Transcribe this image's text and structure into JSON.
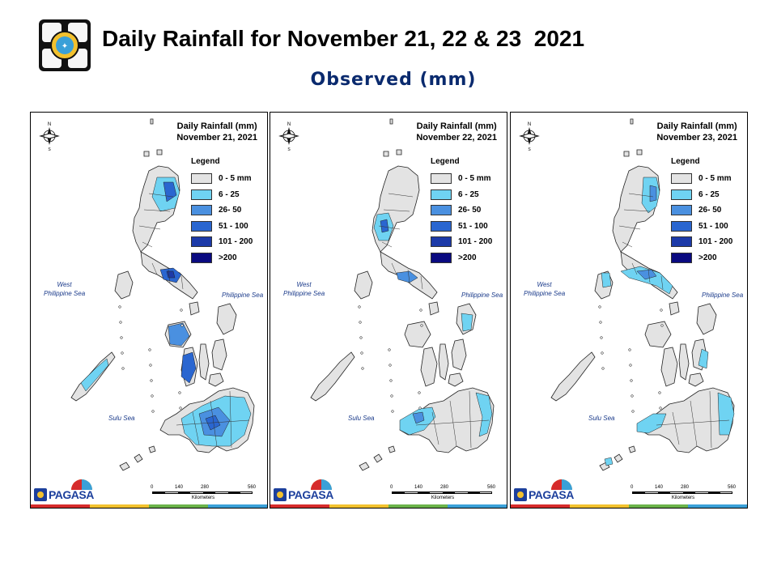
{
  "header": {
    "title": "Daily Rainfall for November 21, 22 & 23  2021",
    "subtitle": "Observed (mm)"
  },
  "legend": {
    "title": "Legend",
    "items": [
      {
        "label": "0 - 5 mm",
        "color": "#e3e3e3"
      },
      {
        "label": "6 - 25",
        "color": "#6fd3f2"
      },
      {
        "label": "26- 50",
        "color": "#4a90e0"
      },
      {
        "label": "51 - 100",
        "color": "#2a66d0"
      },
      {
        "label": "101 - 200",
        "color": "#1c3aa8"
      },
      {
        "label": ">200",
        "color": "#0a0a80"
      }
    ]
  },
  "labels": {
    "west_sea_1": "West",
    "west_sea_2": "Philippine Sea",
    "philippine_sea": "Philippine Sea",
    "sulu_sea": "Sulu Sea",
    "kilometers": "Kilometers",
    "scale_ticks": [
      "0",
      "140",
      "280",
      "560"
    ],
    "brand": "PAGASA"
  },
  "panels": [
    {
      "title": "Daily Rainfall (mm)",
      "date": "November 21, 2021"
    },
    {
      "title": "Daily Rainfall (mm)",
      "date": "November 22, 2021"
    },
    {
      "title": "Daily Rainfall (mm)",
      "date": "November 23, 2021"
    }
  ],
  "strip_colors": [
    "#d62b2b",
    "#f2c12e",
    "#6bb34a",
    "#3aa0d8"
  ]
}
